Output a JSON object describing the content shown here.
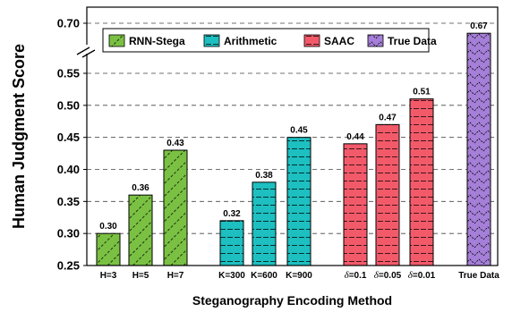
{
  "chart_data": {
    "type": "bar",
    "xlabel": "Steganography Encoding Method",
    "ylabel": "Human Judgment Score",
    "ylim": [
      0.25,
      0.7
    ],
    "axis_break": {
      "between": [
        0.55,
        0.7
      ],
      "marker": "//"
    },
    "yticks": [
      {
        "value": 0.25,
        "label": "0.25"
      },
      {
        "value": 0.3,
        "label": "0.30"
      },
      {
        "value": 0.35,
        "label": "0.35"
      },
      {
        "value": 0.4,
        "label": "0.40"
      },
      {
        "value": 0.45,
        "label": "0.45"
      },
      {
        "value": 0.5,
        "label": "0.50"
      },
      {
        "value": 0.55,
        "label": "0.55"
      },
      {
        "value": 0.7,
        "label": "0.70"
      }
    ],
    "grid": "horizontal dashed",
    "legend_position": "top",
    "series": [
      {
        "name": "RNN-Stega",
        "color": "#7ac143",
        "hatch": "diagonal",
        "points": [
          {
            "category": "H=3",
            "cat_prefix": "",
            "cat_rest": "H=3",
            "value": 0.3,
            "label": "0.30"
          },
          {
            "category": "H=5",
            "cat_prefix": "",
            "cat_rest": "H=5",
            "value": 0.36,
            "label": "0.36"
          },
          {
            "category": "H=7",
            "cat_prefix": "",
            "cat_rest": "H=7",
            "value": 0.43,
            "label": "0.43"
          }
        ]
      },
      {
        "name": "Arithmetic",
        "color": "#1dbfc0",
        "hatch": "dashed-horizontal",
        "points": [
          {
            "category": "K=300",
            "cat_prefix": "",
            "cat_rest": "K=300",
            "value": 0.32,
            "label": "0.32"
          },
          {
            "category": "K=600",
            "cat_prefix": "",
            "cat_rest": "K=600",
            "value": 0.38,
            "label": "0.38"
          },
          {
            "category": "K=900",
            "cat_prefix": "",
            "cat_rest": "K=900",
            "value": 0.45,
            "label": "0.45"
          }
        ]
      },
      {
        "name": "SAAC",
        "color": "#f25a6a",
        "hatch": "dashed-horizontal",
        "points": [
          {
            "category": "δ=0.1",
            "cat_prefix": "δ",
            "cat_rest": "=0.1",
            "value": 0.44,
            "label": "0.44"
          },
          {
            "category": "δ=0.05",
            "cat_prefix": "δ",
            "cat_rest": "=0.05",
            "value": 0.47,
            "label": "0.47"
          },
          {
            "category": "δ=0.01",
            "cat_prefix": "δ",
            "cat_rest": "=0.01",
            "value": 0.51,
            "label": "0.51"
          }
        ]
      },
      {
        "name": "True Data",
        "color": "#a57fd8",
        "hatch": "chevron",
        "points": [
          {
            "category": "True Data",
            "cat_prefix": "",
            "cat_rest": "True Data",
            "value": 0.67,
            "label": "0.67"
          }
        ]
      }
    ]
  }
}
